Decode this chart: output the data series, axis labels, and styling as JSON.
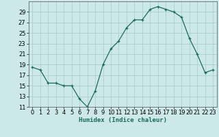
{
  "title": "",
  "xlabel": "Humidex (Indice chaleur)",
  "x": [
    0,
    1,
    2,
    3,
    4,
    5,
    6,
    7,
    8,
    9,
    10,
    11,
    12,
    13,
    14,
    15,
    16,
    17,
    18,
    19,
    20,
    21,
    22,
    23
  ],
  "y": [
    18.5,
    18.0,
    15.5,
    15.5,
    15.0,
    15.0,
    12.5,
    11.0,
    14.0,
    19.0,
    22.0,
    23.5,
    26.0,
    27.5,
    27.5,
    29.5,
    30.0,
    29.5,
    29.0,
    28.0,
    24.0,
    21.0,
    17.5,
    18.0
  ],
  "line_color": "#1a6b5a",
  "marker": "+",
  "bg_color": "#cce8e8",
  "grid_color": "#aad0d0",
  "ylim": [
    11,
    31
  ],
  "yticks": [
    11,
    13,
    15,
    17,
    19,
    21,
    23,
    25,
    27,
    29
  ],
  "xlim": [
    -0.5,
    23.5
  ],
  "xticks": [
    0,
    1,
    2,
    3,
    4,
    5,
    6,
    7,
    8,
    9,
    10,
    11,
    12,
    13,
    14,
    15,
    16,
    17,
    18,
    19,
    20,
    21,
    22,
    23
  ],
  "label_fontsize": 6.5,
  "tick_fontsize": 6
}
